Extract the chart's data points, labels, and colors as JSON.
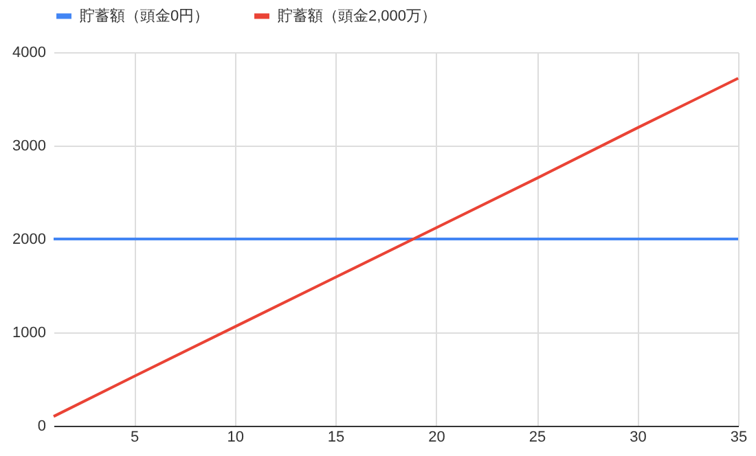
{
  "chart_data": {
    "type": "line",
    "x": [
      1,
      5,
      10,
      15,
      20,
      25,
      30,
      35
    ],
    "series": [
      {
        "name": "貯蓄額（頭金0円）",
        "color": "#4285f4",
        "values": [
          2000,
          2000,
          2000,
          2000,
          2000,
          2000,
          2000,
          2000
        ]
      },
      {
        "name": "貯蓄額（頭金2,000万）",
        "color": "#ea4335",
        "values": [
          100,
          530,
          1060,
          1590,
          2120,
          2650,
          3190,
          3720
        ]
      }
    ],
    "xlim": [
      1,
      35
    ],
    "xticks": [
      5,
      10,
      15,
      20,
      25,
      30,
      35
    ],
    "ylim": [
      0,
      4000
    ],
    "yticks": [
      0,
      1000,
      2000,
      3000,
      4000
    ],
    "grid": true,
    "legend": "top",
    "marker": "none",
    "line_style": "solid"
  }
}
